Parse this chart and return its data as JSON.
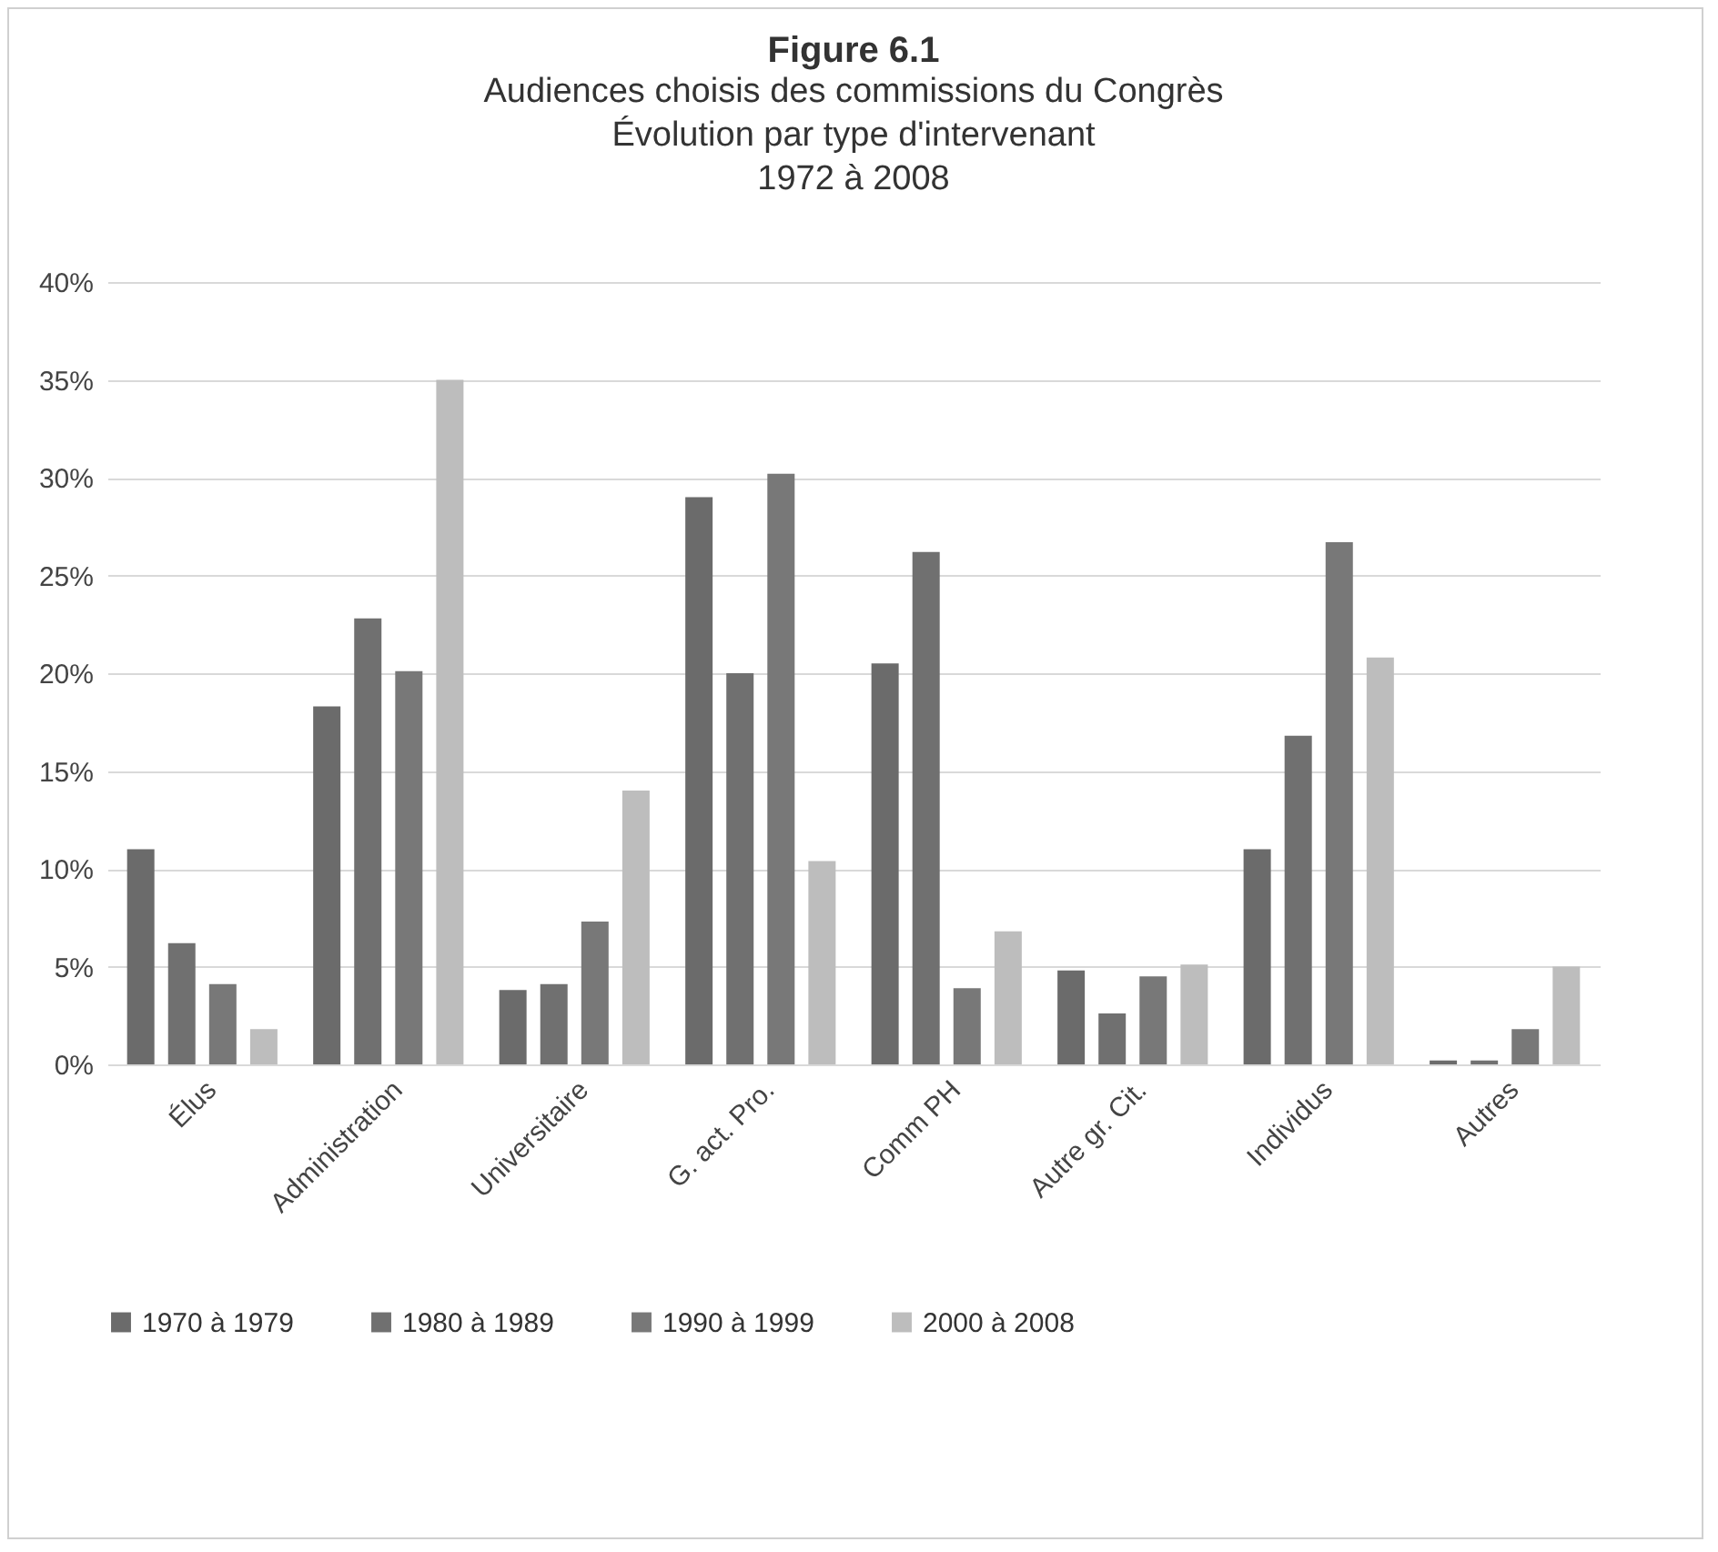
{
  "chart_data": {
    "type": "bar",
    "title": "Figure 6.1",
    "subtitle": "Audiences choisis des commissions du Congrès\nÉvolution par type d'intervenant\n1972 à 2008",
    "categories": [
      "Élus",
      "Administration",
      "Universitaire",
      "G. act. Pro.",
      "Comm PH",
      "Autre gr. Cit.",
      "Individus",
      "Autres"
    ],
    "series": [
      {
        "name": "1970 à 1979",
        "color": "#6b6b6b",
        "values": [
          11.0,
          18.3,
          3.8,
          29.0,
          20.5,
          4.8,
          11.0,
          0.2
        ]
      },
      {
        "name": "1980 à 1989",
        "color": "#707070",
        "values": [
          6.2,
          22.8,
          4.1,
          20.0,
          26.2,
          2.6,
          16.8,
          0.2
        ]
      },
      {
        "name": "1990 à 1999",
        "color": "#787878",
        "values": [
          4.1,
          20.1,
          7.3,
          30.2,
          3.9,
          4.5,
          26.7,
          1.8
        ]
      },
      {
        "name": "2000 à 2008",
        "color": "#bdbdbd",
        "values": [
          1.8,
          35.0,
          14.0,
          10.4,
          6.8,
          5.1,
          20.8,
          5.0
        ]
      }
    ],
    "ylim": [
      0,
      40
    ],
    "yticks": [
      {
        "value": 0,
        "label": "0%"
      },
      {
        "value": 5,
        "label": "5%"
      },
      {
        "value": 10,
        "label": "10%"
      },
      {
        "value": 15,
        "label": "15%"
      },
      {
        "value": 20,
        "label": "20%"
      },
      {
        "value": 25,
        "label": "25%"
      },
      {
        "value": 30,
        "label": "30%"
      },
      {
        "value": 35,
        "label": "35%"
      },
      {
        "value": 40,
        "label": "40%"
      }
    ],
    "grid": "y",
    "legend": "bottom"
  }
}
